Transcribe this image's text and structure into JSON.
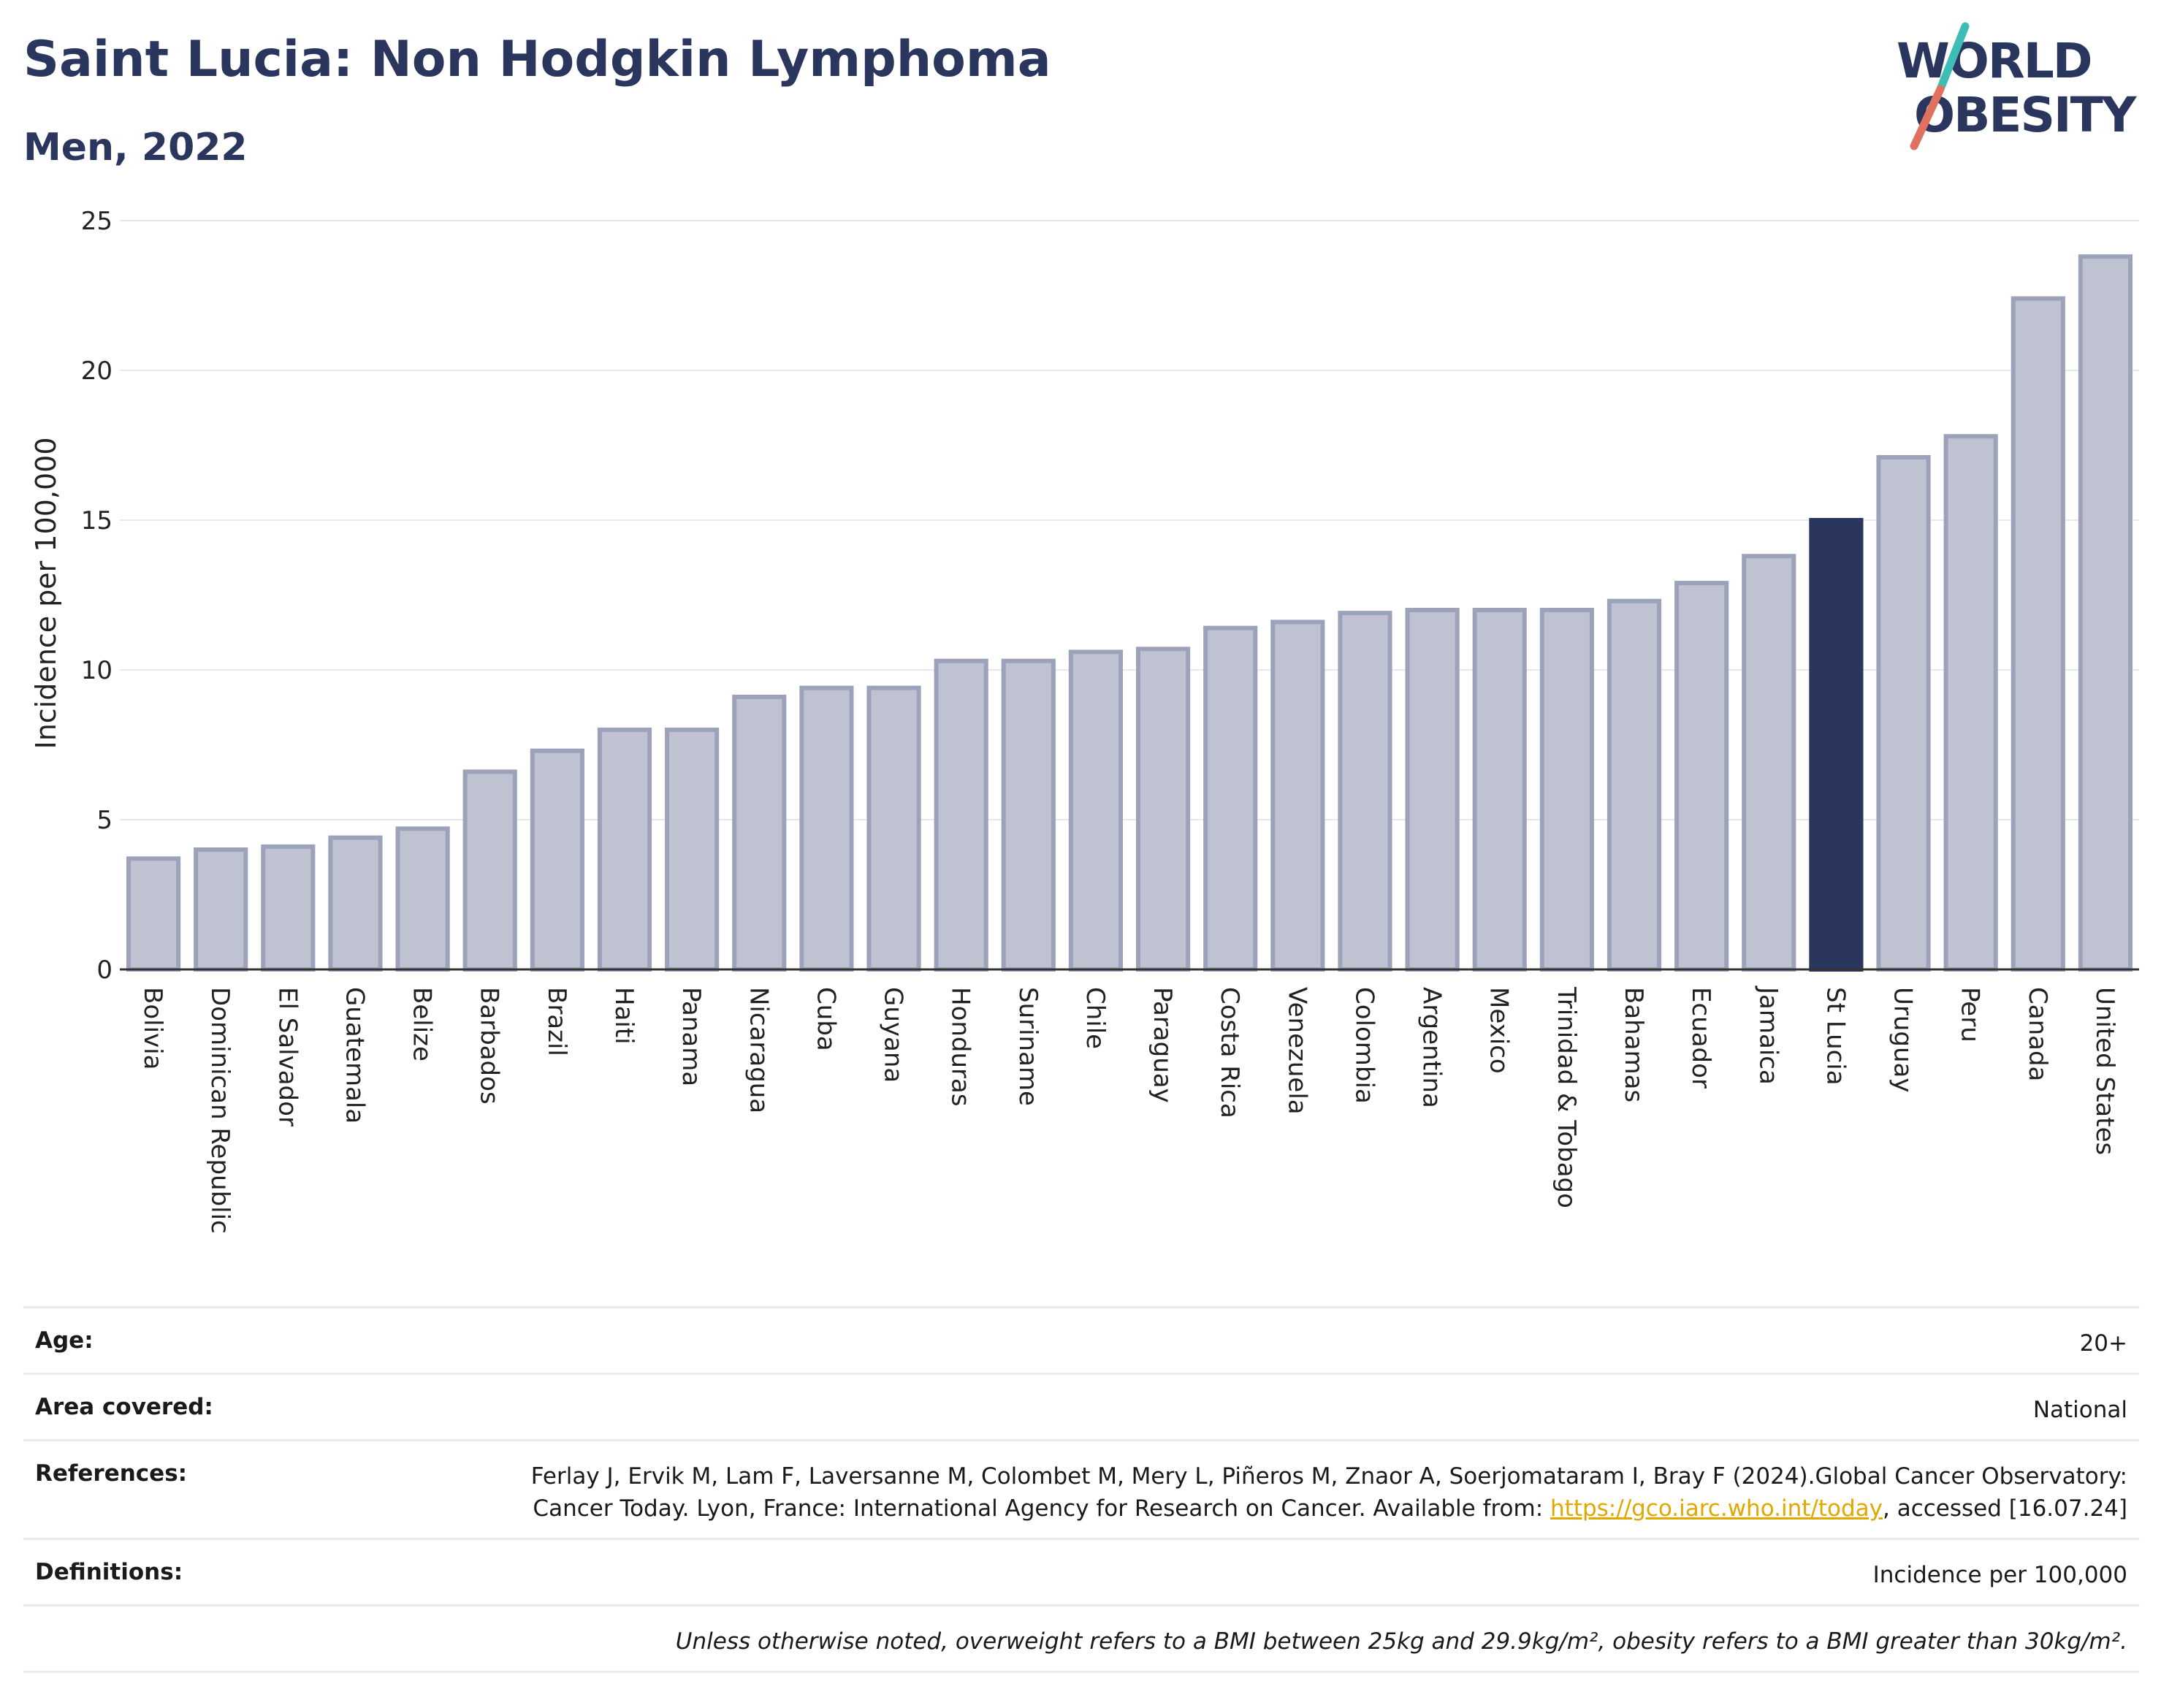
{
  "header": {
    "title": "Saint Lucia: Non Hodgkin Lymphoma",
    "subtitle": "Men, 2022"
  },
  "logo": {
    "line1": "WORLD",
    "line2": "OBESITY"
  },
  "colors": {
    "bar": "#bfc2d0",
    "bar_border": "#9da2bb",
    "highlight": "#2b365e",
    "title": "#2b365e",
    "link": "#e0a800"
  },
  "chart_data": {
    "type": "bar",
    "categories": [
      "Bolivia",
      "Dominican Republic",
      "El Salvador",
      "Guatemala",
      "Belize",
      "Barbados",
      "Brazil",
      "Haiti",
      "Panama",
      "Nicaragua",
      "Cuba",
      "Guyana",
      "Honduras",
      "Suriname",
      "Chile",
      "Paraguay",
      "Costa Rica",
      "Venezuela",
      "Colombia",
      "Argentina",
      "Mexico",
      "Trinidad & Tobago",
      "Bahamas",
      "Ecuador",
      "Jamaica",
      "St Lucia",
      "Uruguay",
      "Peru",
      "Canada",
      "United States"
    ],
    "values": [
      3.7,
      4.0,
      4.1,
      4.4,
      4.7,
      6.6,
      7.3,
      8.0,
      8.0,
      9.1,
      9.4,
      9.4,
      10.3,
      10.3,
      10.6,
      10.7,
      11.4,
      11.6,
      11.9,
      12.0,
      12.0,
      12.0,
      12.3,
      12.9,
      13.8,
      15.0,
      17.1,
      17.8,
      22.4,
      23.8
    ],
    "highlight": "St Lucia",
    "ylabel": "Incidence per 100,000",
    "ylim": [
      0,
      25
    ],
    "yticks": [
      0,
      5,
      10,
      15,
      20,
      25
    ],
    "grid": true
  },
  "info": {
    "age_label": "Age:",
    "age_value": "20+",
    "area_label": "Area covered:",
    "area_value": "National",
    "ref_label": "References:",
    "ref_text_1": "Ferlay J, Ervik M, Lam F, Laversanne M, Colombet M, Mery L, Piñeros M, Znaor A, Soerjomataram I, Bray F (2024).Global Cancer Observatory: Cancer Today. Lyon, France: International Agency for Research on Cancer. Available from: ",
    "ref_link": "https://gco.iarc.who.int/today",
    "ref_text_2": ", accessed [16.07.24]",
    "def_label": "Definitions:",
    "def_value": "Incidence per 100,000",
    "note": "Unless otherwise noted, overweight refers to a BMI between 25kg and 29.9kg/m², obesity refers to a BMI greater than 30kg/m²."
  }
}
